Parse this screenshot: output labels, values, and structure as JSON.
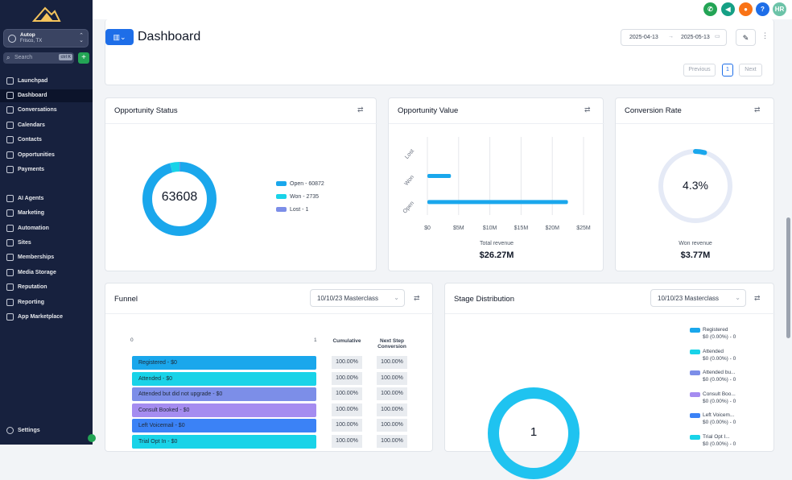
{
  "sidebar": {
    "account": {
      "name": "Autop",
      "location": "Frisco, TX"
    },
    "search": {
      "placeholder": "Search",
      "shortcut": "ctrl K"
    },
    "items": [
      {
        "label": "Launchpad",
        "icon": "rocket-icon"
      },
      {
        "label": "Dashboard",
        "icon": "grid-icon",
        "active": true
      },
      {
        "label": "Conversations",
        "icon": "chat-icon"
      },
      {
        "label": "Calendars",
        "icon": "calendar-icon"
      },
      {
        "label": "Contacts",
        "icon": "contacts-icon"
      },
      {
        "label": "Opportunities",
        "icon": "opportunities-icon"
      },
      {
        "label": "Payments",
        "icon": "payments-icon"
      },
      {
        "label": "AI Agents",
        "icon": "sparkle-icon"
      },
      {
        "label": "Marketing",
        "icon": "send-icon"
      },
      {
        "label": "Automation",
        "icon": "automation-icon"
      },
      {
        "label": "Sites",
        "icon": "sites-icon"
      },
      {
        "label": "Memberships",
        "icon": "membership-icon"
      },
      {
        "label": "Media Storage",
        "icon": "media-icon"
      },
      {
        "label": "Reputation",
        "icon": "star-icon"
      },
      {
        "label": "Reporting",
        "icon": "trend-icon"
      },
      {
        "label": "App Marketplace",
        "icon": "apps-icon"
      }
    ],
    "settings": "Settings"
  },
  "topbar": {
    "avatar": "HR",
    "help": "?"
  },
  "dashboard": {
    "title": "Dashboard",
    "date_from": "2025-04-13",
    "date_to": "2025-05-13",
    "pagination": {
      "previous": "Previous",
      "page": "1",
      "next": "Next"
    }
  },
  "opportunity_status": {
    "title": "Opportunity Status",
    "total": "63608",
    "legend": [
      {
        "label": "Open - 60872",
        "color": "#1aa7ec"
      },
      {
        "label": "Won - 2735",
        "color": "#19d3e8"
      },
      {
        "label": "Lost - 1",
        "color": "#7c8ee8"
      }
    ]
  },
  "opportunity_value": {
    "title": "Opportunity Value",
    "footer_label": "Total revenue",
    "footer_value": "$26.27M"
  },
  "conversion_rate": {
    "title": "Conversion Rate",
    "value": "4.3%",
    "percent": 4.3,
    "footer_label": "Won revenue",
    "footer_value": "$3.77M"
  },
  "funnel": {
    "title": "Funnel",
    "select": "10/10/23 Masterclass",
    "axis_start": "0",
    "axis_end": "1",
    "col_cumulative": "Cumulative",
    "col_next": "Next Step Conversion",
    "rows": [
      {
        "label": "Registered - $0",
        "color": "#1aa7ec",
        "cum": "100.00%",
        "next": "100.00%"
      },
      {
        "label": "Attended - $0",
        "color": "#19d3e8",
        "cum": "100.00%",
        "next": "100.00%"
      },
      {
        "label": "Attended but did not upgrade - $0",
        "color": "#7c8ee8",
        "cum": "100.00%",
        "next": "100.00%"
      },
      {
        "label": "Consult Booked - $0",
        "color": "#a58cf0",
        "cum": "100.00%",
        "next": "100.00%"
      },
      {
        "label": "Left Voicemail - $0",
        "color": "#3b82f6",
        "cum": "100.00%",
        "next": "100.00%"
      },
      {
        "label": "Trial Opt In - $0",
        "color": "#19d3e8",
        "cum": "100.00%",
        "next": "100.00%"
      }
    ]
  },
  "stage_distribution": {
    "title": "Stage Distribution",
    "select": "10/10/23 Masterclass",
    "total": "1",
    "legend": [
      {
        "name": "Registered",
        "value": "$0 (0.00%) - 0",
        "color": "#1aa7ec"
      },
      {
        "name": "Attended",
        "value": "$0 (0.00%) - 0",
        "color": "#19d3e8"
      },
      {
        "name": "Attended bu...",
        "value": "$0 (0.00%) - 0",
        "color": "#7c8ee8"
      },
      {
        "name": "Consult Boo...",
        "value": "$0 (0.00%) - 0",
        "color": "#a58cf0"
      },
      {
        "name": "Left Voicem...",
        "value": "$0 (0.00%) - 0",
        "color": "#3b82f6"
      },
      {
        "name": "Trial Opt I...",
        "value": "$0 (0.00%) - 0",
        "color": "#19d3e8"
      }
    ]
  },
  "chart_data": [
    {
      "type": "pie",
      "title": "Opportunity Status",
      "categories": [
        "Open",
        "Won",
        "Lost"
      ],
      "values": [
        60872,
        2735,
        1
      ]
    },
    {
      "type": "bar",
      "title": "Opportunity Value",
      "orientation": "horizontal",
      "categories": [
        "Lost",
        "Won",
        "Open"
      ],
      "values": [
        0,
        3.77,
        22.5
      ],
      "xlim": [
        0,
        25
      ],
      "ticks": [
        "$0",
        "$5M",
        "$10M",
        "$15M",
        "$20M",
        "$25M"
      ],
      "colors": [
        "#1aa7ec",
        "#1aa7ec",
        "#1aa7ec"
      ]
    },
    {
      "type": "pie",
      "title": "Conversion Rate",
      "categories": [
        "Won"
      ],
      "values": [
        4.3
      ]
    }
  ]
}
